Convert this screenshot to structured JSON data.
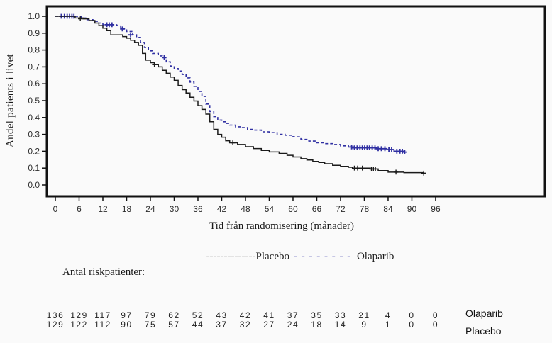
{
  "figure": {
    "y_axis_title": "Andel patients i livet",
    "x_axis_title": "Tid från randomisering (månader)",
    "legend": {
      "placebo_dashes": "--------------",
      "placebo_label": "Placebo",
      "olaparib_dashes": "- - - - - - - -",
      "olaparib_label": "Olaparib"
    },
    "colors": {
      "olaparib": "#2f2fa2",
      "placebo": "#1a1a1a",
      "axis": "#111111"
    }
  },
  "chart_data": {
    "type": "line",
    "subtype": "kaplan-meier-step",
    "title": "",
    "xlabel": "Tid från randomisering (månader)",
    "ylabel": "Andel patients i livet",
    "xlim": [
      0,
      96
    ],
    "ylim": [
      0.0,
      1.0
    ],
    "grid": false,
    "legend_position": "below",
    "x_ticks": [
      0,
      6,
      12,
      18,
      24,
      30,
      36,
      42,
      48,
      54,
      60,
      66,
      72,
      78,
      84,
      90,
      96
    ],
    "y_ticks": [
      "0.0",
      "0.1",
      "0.2",
      "0.3",
      "0.4",
      "0.5",
      "0.6",
      "0.7",
      "0.8",
      "0.9",
      "1.0"
    ],
    "series": [
      {
        "name": "Olaparib",
        "color": "#2f2fa2",
        "style": "dashed",
        "points": [
          [
            0,
            1.0
          ],
          [
            5.5,
            1.0
          ],
          [
            6.5,
            0.99
          ],
          [
            8,
            0.98
          ],
          [
            9.5,
            0.97
          ],
          [
            11,
            0.96
          ],
          [
            12,
            0.95
          ],
          [
            15.5,
            0.945
          ],
          [
            16.5,
            0.925
          ],
          [
            18,
            0.91
          ],
          [
            19.5,
            0.89
          ],
          [
            20.5,
            0.875
          ],
          [
            21.5,
            0.845
          ],
          [
            22.5,
            0.815
          ],
          [
            23.5,
            0.795
          ],
          [
            24.5,
            0.78
          ],
          [
            26,
            0.765
          ],
          [
            27,
            0.755
          ],
          [
            28,
            0.73
          ],
          [
            29,
            0.705
          ],
          [
            30,
            0.69
          ],
          [
            31,
            0.675
          ],
          [
            32,
            0.655
          ],
          [
            33,
            0.635
          ],
          [
            34,
            0.61
          ],
          [
            35,
            0.585
          ],
          [
            36,
            0.555
          ],
          [
            37,
            0.525
          ],
          [
            38,
            0.48
          ],
          [
            39,
            0.435
          ],
          [
            40,
            0.405
          ],
          [
            41,
            0.385
          ],
          [
            42,
            0.375
          ],
          [
            43,
            0.365
          ],
          [
            44,
            0.355
          ],
          [
            45.5,
            0.345
          ],
          [
            47,
            0.34
          ],
          [
            48.5,
            0.33
          ],
          [
            50,
            0.325
          ],
          [
            52,
            0.315
          ],
          [
            54,
            0.31
          ],
          [
            56,
            0.3
          ],
          [
            58,
            0.295
          ],
          [
            60,
            0.285
          ],
          [
            62,
            0.27
          ],
          [
            64,
            0.26
          ],
          [
            66,
            0.25
          ],
          [
            68,
            0.245
          ],
          [
            70,
            0.24
          ],
          [
            72,
            0.232
          ],
          [
            74,
            0.225
          ],
          [
            75,
            0.22
          ],
          [
            81,
            0.215
          ],
          [
            84,
            0.21
          ],
          [
            85.5,
            0.2
          ],
          [
            88.5,
            0.195
          ]
        ],
        "censor_marks": [
          [
            1.5,
            1.0
          ],
          [
            2.3,
            1.0
          ],
          [
            3.0,
            1.0
          ],
          [
            3.6,
            1.0
          ],
          [
            4.2,
            1.0
          ],
          [
            4.7,
            1.0
          ],
          [
            13,
            0.95
          ],
          [
            13.6,
            0.95
          ],
          [
            14.3,
            0.95
          ],
          [
            16.9,
            0.925
          ],
          [
            19,
            0.89
          ],
          [
            27.5,
            0.755
          ],
          [
            74.8,
            0.225
          ],
          [
            75.5,
            0.22
          ],
          [
            76.2,
            0.22
          ],
          [
            76.9,
            0.22
          ],
          [
            77.5,
            0.22
          ],
          [
            78.1,
            0.22
          ],
          [
            78.7,
            0.22
          ],
          [
            79.3,
            0.22
          ],
          [
            80,
            0.22
          ],
          [
            80.7,
            0.22
          ],
          [
            81.5,
            0.215
          ],
          [
            82.3,
            0.215
          ],
          [
            83.2,
            0.215
          ],
          [
            84.2,
            0.21
          ],
          [
            84.9,
            0.21
          ],
          [
            86.2,
            0.2
          ],
          [
            87,
            0.2
          ],
          [
            87.6,
            0.2
          ],
          [
            88.2,
            0.195
          ]
        ]
      },
      {
        "name": "Placebo",
        "color": "#1a1a1a",
        "style": "solid",
        "points": [
          [
            0,
            1.0
          ],
          [
            5,
            0.99
          ],
          [
            7,
            0.985
          ],
          [
            8.5,
            0.975
          ],
          [
            10,
            0.96
          ],
          [
            11,
            0.945
          ],
          [
            12,
            0.93
          ],
          [
            13,
            0.915
          ],
          [
            14,
            0.89
          ],
          [
            17,
            0.88
          ],
          [
            18,
            0.87
          ],
          [
            19,
            0.858
          ],
          [
            20,
            0.845
          ],
          [
            21,
            0.828
          ],
          [
            22,
            0.78
          ],
          [
            22.8,
            0.74
          ],
          [
            24,
            0.725
          ],
          [
            25,
            0.713
          ],
          [
            26,
            0.7
          ],
          [
            27,
            0.68
          ],
          [
            28,
            0.662
          ],
          [
            29,
            0.64
          ],
          [
            30,
            0.62
          ],
          [
            31,
            0.59
          ],
          [
            32,
            0.565
          ],
          [
            33,
            0.545
          ],
          [
            34,
            0.52
          ],
          [
            35,
            0.498
          ],
          [
            36,
            0.47
          ],
          [
            37,
            0.448
          ],
          [
            38,
            0.42
          ],
          [
            39,
            0.375
          ],
          [
            40,
            0.33
          ],
          [
            41,
            0.3
          ],
          [
            42,
            0.283
          ],
          [
            43,
            0.262
          ],
          [
            44,
            0.25
          ],
          [
            46,
            0.24
          ],
          [
            48,
            0.227
          ],
          [
            50,
            0.216
          ],
          [
            52,
            0.205
          ],
          [
            54,
            0.196
          ],
          [
            56.5,
            0.187
          ],
          [
            58.5,
            0.176
          ],
          [
            60,
            0.166
          ],
          [
            62,
            0.156
          ],
          [
            63.5,
            0.148
          ],
          [
            65,
            0.14
          ],
          [
            66.5,
            0.133
          ],
          [
            68,
            0.126
          ],
          [
            70,
            0.117
          ],
          [
            72,
            0.11
          ],
          [
            74,
            0.105
          ],
          [
            75,
            0.1
          ],
          [
            79.5,
            0.095
          ],
          [
            81.5,
            0.085
          ],
          [
            84,
            0.076
          ],
          [
            88,
            0.073
          ],
          [
            93,
            0.07
          ]
        ],
        "censor_marks": [
          [
            6.3,
            0.985
          ],
          [
            25,
            0.713
          ],
          [
            44.8,
            0.25
          ],
          [
            75.5,
            0.1
          ],
          [
            76.3,
            0.1
          ],
          [
            77.5,
            0.1
          ],
          [
            79.8,
            0.095
          ],
          [
            80.3,
            0.095
          ],
          [
            80.8,
            0.095
          ],
          [
            86,
            0.076
          ],
          [
            93,
            0.07
          ]
        ]
      }
    ],
    "risk_table": {
      "title": "Antal riskpatienter:",
      "months": [
        0,
        6,
        12,
        18,
        24,
        30,
        36,
        42,
        48,
        54,
        60,
        66,
        72,
        78,
        84,
        90,
        96
      ],
      "rows": [
        {
          "label": "Olaparib",
          "values": [
            136,
            129,
            117,
            97,
            79,
            62,
            52,
            43,
            42,
            41,
            37,
            35,
            33,
            21,
            4,
            0,
            0
          ]
        },
        {
          "label": "Placebo",
          "values": [
            129,
            122,
            112,
            90,
            75,
            57,
            44,
            37,
            32,
            27,
            24,
            18,
            14,
            9,
            1,
            0,
            0
          ]
        }
      ]
    }
  }
}
